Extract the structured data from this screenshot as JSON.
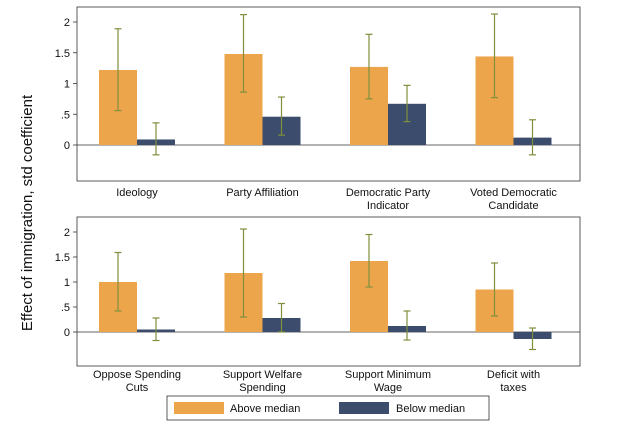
{
  "chart_data": {
    "type": "bar",
    "ylabel": "Effect of immigration, std coefficient",
    "yticks": [
      "0",
      ".5",
      "1",
      "1.5",
      "2"
    ],
    "ylim": [
      -0.65,
      2.2
    ],
    "legend_placement": "bottom",
    "colors": {
      "above": "#eda54b",
      "below": "#3c4c6c",
      "errorbar": "#7f8f3c"
    },
    "series_names": [
      "Above median",
      "Below median"
    ],
    "panels": [
      {
        "categories": [
          [
            "Ideology"
          ],
          [
            "Party Affiliation"
          ],
          [
            "Democratic Party",
            "Indicator"
          ],
          [
            "Voted Democratic",
            "Candidate"
          ]
        ],
        "series": [
          {
            "name": "Above median",
            "values": [
              1.22,
              1.48,
              1.27,
              1.44
            ],
            "ci_low": [
              0.56,
              0.86,
              0.75,
              0.77
            ],
            "ci_high": [
              1.89,
              2.12,
              1.8,
              2.13
            ]
          },
          {
            "name": "Below median",
            "values": [
              0.09,
              0.46,
              0.67,
              0.12
            ],
            "ci_low": [
              -0.16,
              0.16,
              0.38,
              -0.16
            ],
            "ci_high": [
              0.36,
              0.78,
              0.97,
              0.41
            ]
          }
        ]
      },
      {
        "categories": [
          [
            "Oppose Spending",
            "Cuts"
          ],
          [
            "Support Welfare",
            "Spending"
          ],
          [
            "Support Minimum",
            "Wage"
          ],
          [
            "Deficit with",
            "taxes"
          ]
        ],
        "series": [
          {
            "name": "Above median",
            "values": [
              1.0,
              1.18,
              1.42,
              0.85
            ],
            "ci_low": [
              0.42,
              0.3,
              0.9,
              0.32
            ],
            "ci_high": [
              1.59,
              2.06,
              1.95,
              1.38
            ]
          },
          {
            "name": "Below median",
            "values": [
              0.05,
              0.28,
              0.12,
              -0.14
            ],
            "ci_low": [
              -0.17,
              0.0,
              -0.16,
              -0.35
            ],
            "ci_high": [
              0.28,
              0.57,
              0.42,
              0.08
            ]
          }
        ]
      }
    ]
  }
}
